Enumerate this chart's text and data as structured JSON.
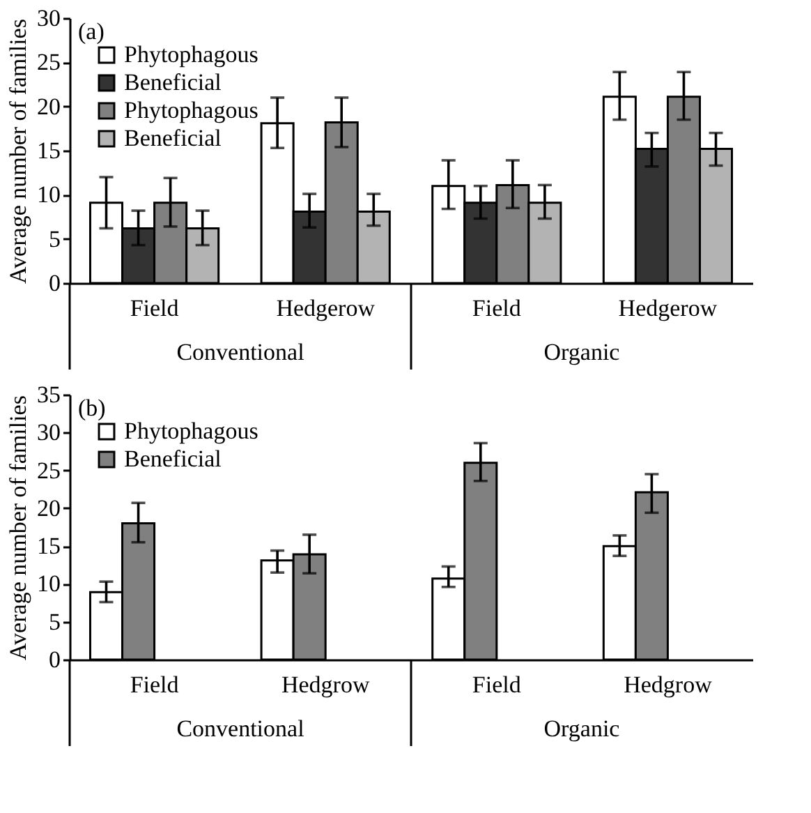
{
  "chart_data": [
    {
      "type": "bar",
      "title": "(a)",
      "ylabel": "Average number of families",
      "categories": [
        "Field",
        "Hedgerow",
        "Field",
        "Hedgerow"
      ],
      "annotations": [
        "Conventional",
        "Organic"
      ],
      "ylim": [
        0,
        30
      ],
      "yticks": [
        0,
        5,
        10,
        15,
        20,
        25,
        30
      ],
      "legend": "top left",
      "grid": false,
      "series": [
        {
          "name": "Phytophagous",
          "color": "#ffffff",
          "values": [
            9.1,
            18.1,
            11,
            21.1
          ],
          "errors": [
            [
              6.2,
              12
            ],
            [
              15.3,
              21
            ],
            [
              8.4,
              13.9
            ],
            [
              18.5,
              23.9
            ]
          ]
        },
        {
          "name": "Beneficial",
          "color": "#333333",
          "values": [
            6.2,
            8.1,
            9.1,
            15.2
          ],
          "errors": [
            [
              4.3,
              8.2
            ],
            [
              6.3,
              10.1
            ],
            [
              7.3,
              11
            ],
            [
              13.2,
              17
            ]
          ]
        },
        {
          "name": "Phytophagous",
          "color": "#808080",
          "values": [
            9.1,
            18.2,
            11.1,
            21.1
          ],
          "errors": [
            [
              6.4,
              11.9
            ],
            [
              15.4,
              21
            ],
            [
              8.5,
              13.9
            ],
            [
              18.5,
              23.9
            ]
          ]
        },
        {
          "name": "Beneficial",
          "color": "#b3b3b3",
          "values": [
            6.2,
            8.1,
            9.1,
            15.2
          ],
          "errors": [
            [
              4.3,
              8.2
            ],
            [
              6.5,
              10.1
            ],
            [
              7.3,
              11.1
            ],
            [
              13.3,
              17
            ]
          ]
        }
      ]
    },
    {
      "type": "bar",
      "title": "(b)",
      "ylabel": "Average number of families",
      "categories": [
        "Field",
        "Hedgrow",
        "Field",
        "Hedgrow"
      ],
      "annotations": [
        "Conventional",
        "Organic"
      ],
      "ylim": [
        0,
        35
      ],
      "yticks": [
        0,
        5,
        10,
        15,
        20,
        25,
        30,
        35
      ],
      "legend": "top left",
      "grid": false,
      "series": [
        {
          "name": "Phytophagous",
          "color": "#ffffff",
          "values": [
            8.9,
            13.1,
            10.7,
            15
          ],
          "errors": [
            [
              7.6,
              10.3
            ],
            [
              11.5,
              14.4
            ],
            [
              9.6,
              12.3
            ],
            [
              13.7,
              16.4
            ]
          ]
        },
        {
          "name": "Beneficial",
          "color": "#808080",
          "values": [
            18,
            13.9,
            26,
            22.1
          ],
          "errors": [
            [
              15.5,
              20.7
            ],
            [
              11.4,
              16.5
            ],
            [
              23.6,
              28.6
            ],
            [
              19.4,
              24.5
            ]
          ]
        }
      ]
    }
  ]
}
